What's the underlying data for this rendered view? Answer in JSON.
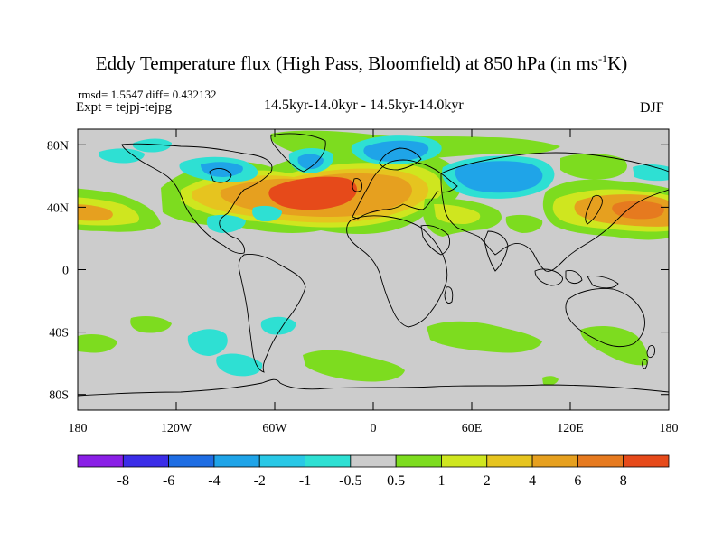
{
  "title_main": "Eddy Temperature flux (High Pass, Bloomfield) at 850 hPa (in ms",
  "title_sup": "-1",
  "title_end": "K)",
  "stats": "rmsd= 1.5547 diff= 0.432132",
  "experiment": "Expt = tejpj-tejpg",
  "period": "14.5kyr-14.0kyr - 14.5kyr-14.0kyr",
  "season": "DJF",
  "lat_ticks": [
    {
      "label": "80N",
      "lat": 80
    },
    {
      "label": "40N",
      "lat": 40
    },
    {
      "label": "0",
      "lat": 0
    },
    {
      "label": "40S",
      "lat": -40
    },
    {
      "label": "80S",
      "lat": -80
    }
  ],
  "lon_ticks": [
    {
      "label": "180",
      "lon": -180
    },
    {
      "label": "120W",
      "lon": -120
    },
    {
      "label": "60W",
      "lon": -60
    },
    {
      "label": "0",
      "lon": 0
    },
    {
      "label": "60E",
      "lon": 60
    },
    {
      "label": "120E",
      "lon": 120
    },
    {
      "label": "180",
      "lon": 180
    }
  ],
  "colorbar": {
    "colors": [
      "#8a1fe6",
      "#3b2de8",
      "#1e6de3",
      "#1fa4e8",
      "#29c8e6",
      "#2ee0d3",
      "#cccccc",
      "#7ddc1f",
      "#cfe61f",
      "#e6c41f",
      "#e6a01f",
      "#e67a1f",
      "#e64a1a"
    ],
    "labels": [
      "-8",
      "-6",
      "-4",
      "-2",
      "-1",
      "-0.5",
      "0.5",
      "1",
      "2",
      "4",
      "6",
      "8"
    ]
  },
  "colors": {
    "background": "#cccccc",
    "coast": "#000000"
  }
}
